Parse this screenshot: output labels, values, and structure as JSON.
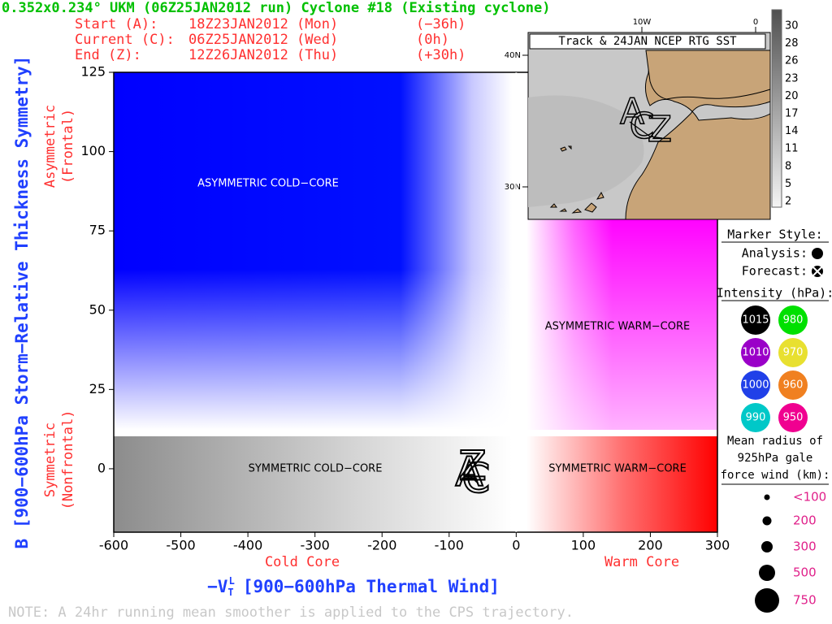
{
  "chart_data": {
    "type": "scatter",
    "title": "0.352x0.234° UKM (06Z25JAN2012 run) Cyclone #18 (Existing cyclone)",
    "times": [
      [
        "Start (A):",
        "18Z23JAN2012 (Mon)",
        "(−36h)"
      ],
      [
        "Current (C):",
        "06Z25JAN2012 (Wed)",
        "(0h)"
      ],
      [
        "End (Z):",
        "12Z26JAN2012 (Thu)",
        "(+30h)"
      ]
    ],
    "xlabel": {
      "main": "−V",
      "sub": "T",
      "sup": "L",
      "text": "[900−600hPa Thermal Wind]"
    },
    "ylabel": "B [900−600hPa Storm−Relative Thickness Symmetry]",
    "x_side_labels": [
      "Cold Core",
      "Warm Core"
    ],
    "y_side_labels": [
      [
        "Symmetric",
        "(Nonfrontal)"
      ],
      [
        "Asymmetric",
        "(Frontal)"
      ]
    ],
    "quadrants": [
      "ASYMMETRIC COLD−CORE",
      "ASYMMETRIC WARM−CORE",
      "SYMMETRIC COLD−CORE",
      "SYMMETRIC WARM−CORE"
    ],
    "xlim": [
      -600,
      300
    ],
    "ylim": [
      -20,
      125
    ],
    "xticks": [
      -600,
      -500,
      -400,
      -300,
      -200,
      -100,
      0,
      100,
      200,
      300
    ],
    "yticks": [
      0,
      25,
      50,
      75,
      100,
      125
    ],
    "track": {
      "labels": [
        "A",
        "C",
        "Z"
      ],
      "x": [
        -70,
        -60,
        -65
      ],
      "y": [
        -2,
        -4,
        0
      ]
    },
    "inset": {
      "title": "Track & 24JAN NCEP RTG SST",
      "lon_labels": [
        "10W",
        "0"
      ],
      "lat_labels": [
        "40N",
        "30N"
      ],
      "colorbar": [
        "30",
        "28",
        "26",
        "23",
        "20",
        "17",
        "14",
        "11",
        "8",
        "5",
        "2"
      ]
    },
    "legend": {
      "marker_title": "Marker Style:",
      "marker_items": [
        "Analysis:",
        "Forecast:"
      ],
      "intensity_title": "Intensity (hPa):",
      "intensity": [
        {
          "label": "1015",
          "color": "#000000"
        },
        {
          "label": "980",
          "color": "#00e000"
        },
        {
          "label": "1010",
          "color": "#9a00c8"
        },
        {
          "label": "970",
          "color": "#e8e030"
        },
        {
          "label": "1000",
          "color": "#2040e8"
        },
        {
          "label": "960",
          "color": "#f08020"
        },
        {
          "label": "990",
          "color": "#00c8c8"
        },
        {
          "label": "950",
          "color": "#f00090"
        }
      ],
      "radius_title": [
        "Mean radius of",
        "925hPa gale",
        "force wind (km):"
      ],
      "radius": [
        "<100",
        "200",
        "300",
        "500",
        "750"
      ]
    },
    "note": "NOTE:  A 24hr running mean smoother is applied to the CPS trajectory."
  }
}
